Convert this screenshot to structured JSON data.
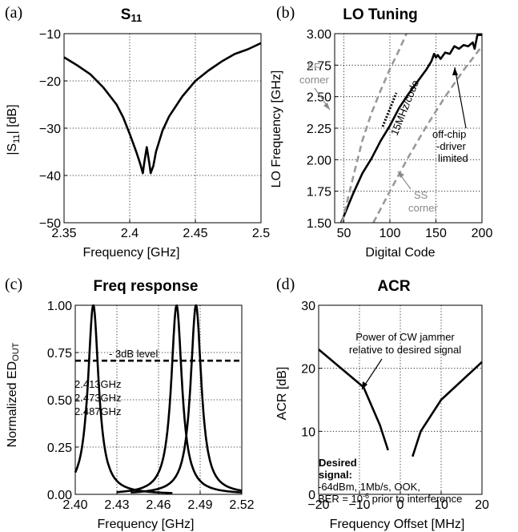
{
  "panels": {
    "a": {
      "label": "(a)"
    },
    "b": {
      "label": "(b)"
    },
    "c": {
      "label": "(c)"
    },
    "d": {
      "label": "(d)"
    }
  },
  "chart_data": [
    {
      "id": "a",
      "type": "line",
      "title": "S",
      "title_sub": "11",
      "xlabel": "Frequency [GHz]",
      "ylabel": "|S",
      "ylabel_sub": "11",
      "ylabel_tail": "| [dB]",
      "xlim": [
        2.35,
        2.5
      ],
      "ylim": [
        -50,
        -10
      ],
      "xticks": [
        2.35,
        2.4,
        2.45,
        2.5
      ],
      "xtick_labels": [
        "2.35",
        "2.4",
        "2.45",
        "2.5"
      ],
      "yticks": [
        -50,
        -40,
        -30,
        -20,
        -10
      ],
      "ytick_labels": [
        "−50",
        "−40",
        "−30",
        "−20",
        "−10"
      ],
      "grid": true,
      "series": [
        {
          "color": "#000000",
          "x": [
            2.35,
            2.36,
            2.37,
            2.38,
            2.39,
            2.395,
            2.4,
            2.405,
            2.408,
            2.41,
            2.411,
            2.413,
            2.415,
            2.416,
            2.418,
            2.42,
            2.425,
            2.43,
            2.44,
            2.45,
            2.46,
            2.47,
            2.48,
            2.49,
            2.5
          ],
          "y": [
            -15,
            -16.7,
            -18.6,
            -21.4,
            -25,
            -27.7,
            -31.2,
            -35.0,
            -37.5,
            -39.5,
            -37.5,
            -34,
            -37.5,
            -39.5,
            -38,
            -35,
            -30.5,
            -27.5,
            -23.3,
            -20.0,
            -17.8,
            -15.9,
            -14.3,
            -13.3,
            -12
          ]
        }
      ]
    },
    {
      "id": "b",
      "type": "line",
      "title": "LO Tuning",
      "xlabel": "Digital Code",
      "ylabel": "LO Frequency [GHz]",
      "xlim": [
        40,
        200
      ],
      "ylim": [
        1.5,
        3.0
      ],
      "xticks": [
        50,
        100,
        150,
        200
      ],
      "xtick_labels": [
        "50",
        "100",
        "150",
        "200"
      ],
      "yticks": [
        1.5,
        1.75,
        2.0,
        2.25,
        2.5,
        2.75,
        3.0
      ],
      "ytick_labels": [
        "1.50",
        "1.75",
        "2.00",
        "2.25",
        "2.50",
        "2.75",
        "3.00"
      ],
      "grid": true,
      "series": [
        {
          "color": "#000000",
          "x": [
            47,
            60,
            70,
            80,
            90,
            100,
            110,
            120,
            130,
            140,
            145,
            148,
            150,
            152,
            155,
            160,
            165,
            170,
            175,
            180,
            185,
            190,
            192,
            195,
            200
          ],
          "y": [
            1.5,
            1.73,
            1.89,
            2.01,
            2.15,
            2.27,
            2.41,
            2.52,
            2.62,
            2.72,
            2.78,
            2.84,
            2.81,
            2.83,
            2.8,
            2.85,
            2.84,
            2.9,
            2.88,
            2.91,
            2.9,
            2.93,
            2.88,
            2.99,
            2.99
          ]
        },
        {
          "name": "FF corner",
          "color": "#999999",
          "dashed": true,
          "x": [
            48,
            60,
            70,
            80,
            90,
            100,
            110,
            118
          ],
          "y": [
            1.5,
            1.86,
            2.15,
            2.37,
            2.55,
            2.72,
            2.87,
            3.0
          ]
        },
        {
          "name": "SS corner",
          "color": "#999999",
          "dashed": true,
          "x": [
            82,
            100,
            120,
            140,
            160,
            180,
            200
          ],
          "y": [
            1.5,
            1.75,
            2.02,
            2.27,
            2.5,
            2.71,
            2.9
          ]
        }
      ],
      "annotations": {
        "ff_line1": "FF",
        "ff_line2": "corner",
        "ss_line1": "SS",
        "ss_line2": "corner",
        "slope": "15MHz/code",
        "limit_line1": "off-chip",
        "limit_line2": "-driver",
        "limit_line3": "limited"
      }
    },
    {
      "id": "c",
      "type": "line",
      "title": "Freq response",
      "xlabel": "Frequency [GHz]",
      "ylabel": "Normalized ED",
      "ylabel_sub": "OUT",
      "xlim": [
        2.4,
        2.52
      ],
      "ylim": [
        0,
        1.0
      ],
      "xticks": [
        2.4,
        2.43,
        2.46,
        2.49,
        2.52
      ],
      "xtick_labels": [
        "2.40",
        "2.43",
        "2.46",
        "2.49",
        "2.52"
      ],
      "yticks": [
        0,
        0.25,
        0.5,
        0.75,
        1.0
      ],
      "ytick_labels": [
        "0.00",
        "0.25",
        "0.50",
        "0.75",
        "1.00"
      ],
      "grid": true,
      "series": [
        {
          "name": "2.413GHz",
          "color": "#000000",
          "center": 2.413,
          "halfwidth": 0.0047,
          "xrange": [
            2.4,
            2.47
          ]
        },
        {
          "name": "2.473GHz",
          "color": "#000000",
          "center": 2.473,
          "halfwidth": 0.0047,
          "xrange": [
            2.43,
            2.52
          ]
        },
        {
          "name": "2.487GHz",
          "color": "#000000",
          "center": 2.487,
          "halfwidth": 0.0047,
          "xrange": [
            2.44,
            2.52
          ]
        }
      ],
      "reference_line": {
        "label": "- 3dB level",
        "y": 0.707
      }
    },
    {
      "id": "d",
      "type": "line",
      "title": "ACR",
      "xlabel": "Frequency Offset [MHz]",
      "ylabel": "ACR [dB]",
      "xlim": [
        -20,
        20
      ],
      "ylim": [
        0,
        30
      ],
      "xticks": [
        -20,
        -10,
        0,
        10,
        20
      ],
      "xtick_labels": [
        "−20",
        "−10",
        "0",
        "10",
        "20"
      ],
      "yticks": [
        0,
        10,
        20,
        30
      ],
      "ytick_labels": [
        "0",
        "10",
        "20",
        "30"
      ],
      "grid": true,
      "series": [
        {
          "color": "#000000",
          "x": [
            -20,
            -9,
            -5,
            -3
          ],
          "y": [
            23,
            17,
            11,
            7
          ]
        },
        {
          "color": "#000000",
          "x": [
            3,
            5,
            10,
            20
          ],
          "y": [
            6,
            10,
            15,
            21
          ]
        }
      ],
      "annotations": {
        "jammer_line1": "Power of CW jammer",
        "jammer_line2": "relative to desired signal",
        "desired_line1": "Desired",
        "desired_line2": "signal:",
        "cond_line1": "-64dBm, 1Mb/s, OOK,",
        "cond_line2_a": "BER = 10",
        "cond_line2_sup": "-6",
        "cond_line2_b": " prior to interference"
      }
    }
  ]
}
